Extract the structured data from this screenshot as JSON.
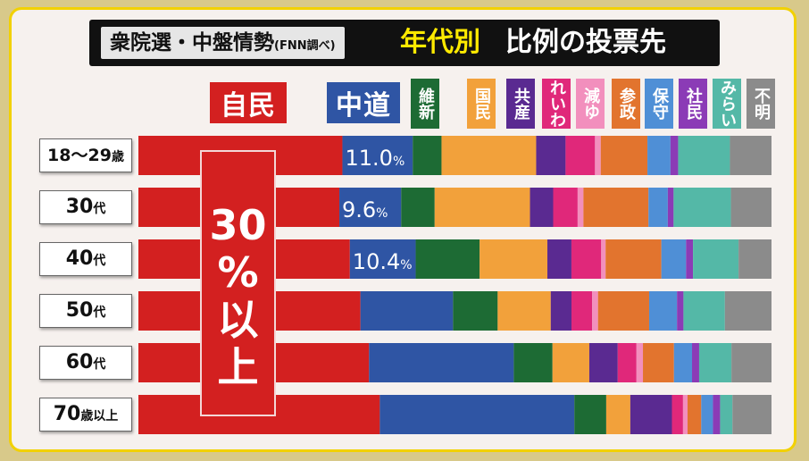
{
  "header": {
    "title_left_main": "衆院選・中盤情勢",
    "title_left_source": "(FNN調べ)",
    "title_mid": "年代別",
    "title_right": "比例の投票先"
  },
  "callout": {
    "lines": [
      "30",
      "%",
      "以",
      "上"
    ]
  },
  "chart_data": {
    "type": "bar",
    "orientation": "horizontal",
    "stacked": true,
    "normalized": true,
    "categories": [
      "18～29歳",
      "30代",
      "40代",
      "50代",
      "60代",
      "70歳以上"
    ],
    "category_labels": [
      {
        "main": "18～29",
        "suffix": "歳"
      },
      {
        "main": "30",
        "suffix": "代"
      },
      {
        "main": "40",
        "suffix": "代"
      },
      {
        "main": "50",
        "suffix": "代"
      },
      {
        "main": "60",
        "suffix": "代"
      },
      {
        "main": "70",
        "suffix": "歳以上"
      }
    ],
    "series": [
      {
        "name": "自民",
        "color": "#d32020",
        "values": [
          31.9,
          31.2,
          33.4,
          34.3,
          35.7,
          37.1
        ]
      },
      {
        "name": "中道",
        "color": "#2f55a4",
        "values": [
          11.0,
          9.6,
          10.4,
          14.3,
          22.4,
          29.9
        ]
      },
      {
        "name": "維新",
        "color": "#1d6b34",
        "values": [
          4.5,
          5.2,
          10.1,
          6.9,
          6.0,
          4.9
        ]
      },
      {
        "name": "国民",
        "color": "#f2a13b",
        "values": [
          14.8,
          14.8,
          10.7,
          8.2,
          5.7,
          3.7
        ]
      },
      {
        "name": "共産",
        "color": "#5a2a91",
        "values": [
          4.6,
          3.6,
          3.8,
          3.2,
          4.4,
          6.4
        ]
      },
      {
        "name": "れいわ",
        "color": "#e0287a",
        "values": [
          4.6,
          3.8,
          4.7,
          3.2,
          2.9,
          1.7
        ]
      },
      {
        "name": "減ゆ",
        "color": "#f28fbd",
        "values": [
          0.9,
          0.9,
          0.7,
          0.9,
          1.0,
          0.7
        ]
      },
      {
        "name": "参政",
        "color": "#e2742e",
        "values": [
          7.3,
          10.1,
          8.8,
          7.9,
          4.8,
          2.1
        ]
      },
      {
        "name": "保守",
        "color": "#4f8fd6",
        "values": [
          3.6,
          3.0,
          3.9,
          4.3,
          2.8,
          1.8
        ]
      },
      {
        "name": "社民",
        "color": "#8b3bb6",
        "values": [
          1.2,
          0.9,
          1.1,
          1.0,
          1.1,
          1.1
        ]
      },
      {
        "name": "みらい",
        "color": "#54b8a7",
        "values": [
          8.1,
          8.9,
          7.2,
          6.4,
          5.0,
          1.9
        ]
      },
      {
        "name": "不明",
        "color": "#8b8b8b",
        "values": [
          6.5,
          6.3,
          5.2,
          7.2,
          6.2,
          6.0
        ]
      }
    ],
    "data_labels": [
      {
        "series": "中道",
        "category": "18～29歳",
        "text": "11.0",
        "unit": "%"
      },
      {
        "series": "中道",
        "category": "30代",
        "text": "9.6",
        "unit": "%"
      },
      {
        "series": "中道",
        "category": "40代",
        "text": "10.4",
        "unit": "%"
      }
    ],
    "xlim": [
      0,
      100
    ],
    "grid": false,
    "legend": "top"
  }
}
